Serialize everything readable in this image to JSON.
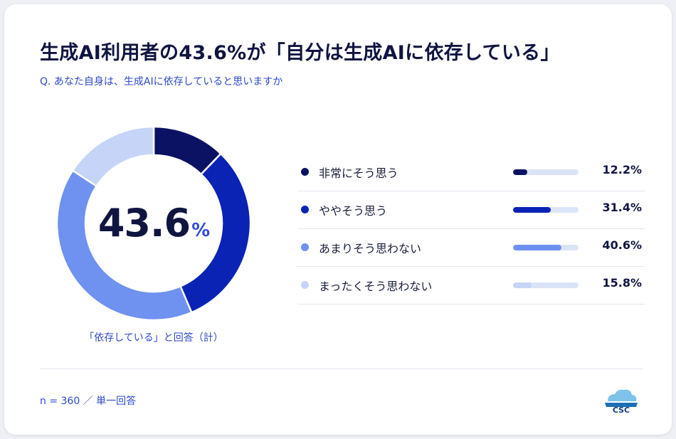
{
  "title": "生成AI利用者の43.6%が「自分は生成AIに依存している」",
  "subtitle": "Q. あなた自身は、生成AIに依存していると思いますか",
  "center": {
    "value": "43.6",
    "unit": "%"
  },
  "caption": "「依存している」と回答（計）",
  "footer": "n = 360 ／ 単一回答",
  "logo": {
    "icon": "cloud-icon"
  },
  "colors": [
    "#0b1263",
    "#0a23b5",
    "#6f91ef",
    "#c5d4f7"
  ],
  "chart_data": {
    "type": "pie",
    "categories": [
      "非常にそう思う",
      "ややそう思う",
      "あまりそう思わない",
      "まったくそう思わない"
    ],
    "values": [
      12.2,
      31.4,
      40.6,
      15.8
    ],
    "value_labels": [
      "12.2%",
      "31.4%",
      "40.6%",
      "15.8%"
    ],
    "unit": "%",
    "legend": "right"
  }
}
